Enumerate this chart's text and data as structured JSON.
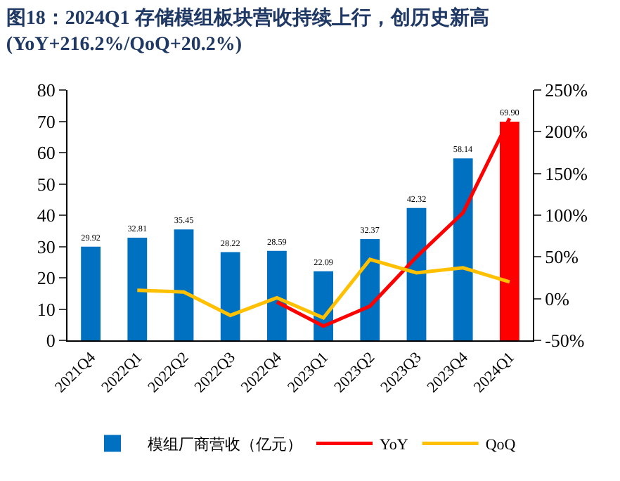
{
  "chart_data": {
    "type": "bar",
    "title": "图18：2024Q1 存储模组板块营收持续上行，创历史新高\n(YoY+216.2%/QoQ+20.2%)",
    "categories": [
      "2021Q4",
      "2022Q1",
      "2022Q2",
      "2022Q3",
      "2022Q4",
      "2023Q1",
      "2023Q2",
      "2023Q3",
      "2023Q4",
      "2024Q1"
    ],
    "series": [
      {
        "name": "模组厂商营收（亿元）",
        "colors": [
          "#0070c0",
          "#0070c0",
          "#0070c0",
          "#0070c0",
          "#0070c0",
          "#0070c0",
          "#0070c0",
          "#0070c0",
          "#0070c0",
          "#ff0000"
        ],
        "values": [
          29.92,
          32.81,
          35.45,
          28.22,
          28.59,
          22.09,
          32.37,
          42.32,
          58.14,
          69.9
        ],
        "value_labels": [
          "29.92",
          "32.81",
          "35.45",
          "28.22",
          "28.59",
          "22.09",
          "32.37",
          "42.32",
          "58.14",
          "69.90"
        ]
      },
      {
        "name": "YoY",
        "type": "line",
        "axis": "y2",
        "color": "#ff0000",
        "values": [
          null,
          null,
          null,
          null,
          -4,
          -33,
          -9,
          50,
          103,
          216
        ]
      },
      {
        "name": "QoQ",
        "type": "line",
        "axis": "y2",
        "color": "#ffc000",
        "values": [
          null,
          10,
          8,
          -20,
          1,
          -23,
          47,
          31,
          37,
          20
        ]
      }
    ],
    "ylim": [
      0,
      80
    ],
    "yticks": [
      0,
      10,
      20,
      30,
      40,
      50,
      60,
      70,
      80
    ],
    "y2lim": [
      -50,
      250
    ],
    "y2ticks": [
      {
        "value": -50,
        "label": "-50%"
      },
      {
        "value": 0,
        "label": "0%"
      },
      {
        "value": 50,
        "label": "50%"
      },
      {
        "value": 100,
        "label": "100%"
      },
      {
        "value": 150,
        "label": "150%"
      },
      {
        "value": 200,
        "label": "200%"
      },
      {
        "value": 250,
        "label": "250%"
      }
    ],
    "legend": "bottom",
    "marker": "none",
    "line_style": "solid"
  }
}
